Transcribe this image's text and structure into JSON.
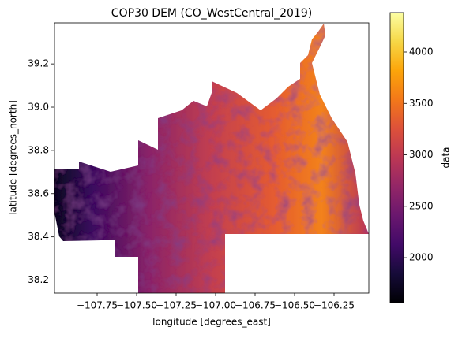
{
  "chart_data": {
    "type": "image",
    "title": "COP30 DEM (CO_WestCentral_2019)",
    "xlabel": "longitude [degrees_east]",
    "ylabel": "latitude [degrees_north]",
    "xlim": [
      -108.02,
      -106.03
    ],
    "ylim": [
      38.14,
      39.39
    ],
    "xticks": [
      {
        "value": -107.75,
        "label": "−107.75"
      },
      {
        "value": -107.5,
        "label": "−107.50"
      },
      {
        "value": -107.25,
        "label": "−107.25"
      },
      {
        "value": -107.0,
        "label": "−107.00"
      },
      {
        "value": -106.75,
        "label": "−106.75"
      },
      {
        "value": -106.5,
        "label": "−106.50"
      },
      {
        "value": -106.25,
        "label": "−106.25"
      }
    ],
    "yticks": [
      38.2,
      38.4,
      38.6,
      38.8,
      {
        "value": 39,
        "label": "39.0"
      },
      39.2
    ],
    "colorbar": {
      "label": "data",
      "clim": [
        1564,
        4383
      ],
      "ticks": [
        2000,
        2500,
        3000,
        3500,
        4000
      ]
    }
  }
}
